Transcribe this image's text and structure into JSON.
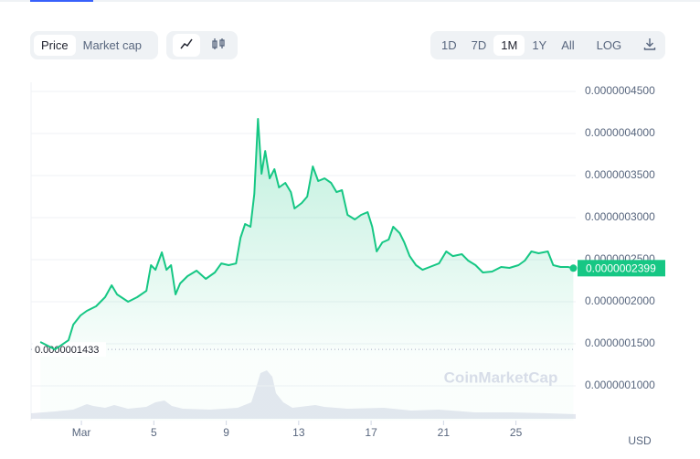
{
  "toolbar": {
    "price": "Price",
    "market_cap": "Market cap",
    "ranges": [
      "1D",
      "7D",
      "1M",
      "1Y",
      "All"
    ],
    "log": "LOG"
  },
  "chart_data": {
    "type": "line",
    "color": "#16c784",
    "watermark": "CoinMarketCap",
    "currency": "USD",
    "xlim": [
      -1.78,
      28.3
    ],
    "xticks": [
      {
        "value": 1,
        "label": "Mar"
      },
      5,
      9,
      13,
      17,
      21,
      25
    ],
    "ylim": [
      5.87e-08,
      4.609e-07
    ],
    "yticks": [
      {
        "value": 1e-07,
        "label": "0.0000001000"
      },
      {
        "value": 1.5e-07,
        "label": "0.0000001500"
      },
      {
        "value": 2e-07,
        "label": "0.0000002000"
      },
      {
        "value": 2.5e-07,
        "label": "0.0000002500"
      },
      {
        "value": 3e-07,
        "label": "0.0000003000"
      },
      {
        "value": 3.5e-07,
        "label": "0.0000003500"
      },
      {
        "value": 4e-07,
        "label": "0.0000004000"
      },
      {
        "value": 4.5e-07,
        "label": "0.0000004500"
      }
    ],
    "grid": true,
    "min_marker": {
      "value": 1.433e-07,
      "label": "0.0000001433"
    },
    "last_marker": {
      "value": 2.399e-07,
      "label": "0.0000002399"
    },
    "x": [
      -1.27,
      -0.46,
      0.29,
      0.55,
      0.95,
      1.3,
      1.81,
      2.31,
      2.67,
      2.97,
      3.58,
      4.08,
      4.59,
      4.84,
      5.09,
      5.44,
      5.7,
      5.95,
      6.2,
      6.45,
      6.86,
      7.36,
      7.87,
      8.37,
      8.73,
      9.13,
      9.54,
      9.79,
      10.04,
      10.34,
      10.55,
      10.75,
      10.95,
      11.15,
      11.4,
      11.66,
      11.91,
      12.26,
      12.57,
      12.77,
      13.17,
      13.47,
      13.78,
      14.08,
      14.43,
      14.79,
      15.09,
      15.39,
      15.7,
      16.1,
      16.45,
      16.81,
      17.06,
      17.31,
      17.62,
      17.97,
      18.22,
      18.58,
      18.83,
      19.13,
      19.48,
      19.84,
      20.24,
      20.75,
      21.15,
      21.51,
      22.01,
      22.36,
      22.77,
      23.17,
      23.68,
      24.18,
      24.64,
      25.14,
      25.49,
      25.85,
      26.25,
      26.76,
      27.06,
      27.46,
      27.87,
      28.17
    ],
    "values": [
      1.522e-07,
      1.433e-07,
      1.543e-07,
      1.728e-07,
      1.837e-07,
      1.891e-07,
      1.946e-07,
      2.054e-07,
      2.196e-07,
      2.087e-07,
      2e-07,
      2.054e-07,
      2.13e-07,
      2.435e-07,
      2.38e-07,
      2.587e-07,
      2.38e-07,
      2.435e-07,
      2.087e-07,
      2.217e-07,
      2.304e-07,
      2.37e-07,
      2.272e-07,
      2.348e-07,
      2.456e-07,
      2.435e-07,
      2.456e-07,
      2.761e-07,
      2.924e-07,
      2.891e-07,
      3.283e-07,
      4.174e-07,
      3.522e-07,
      3.793e-07,
      3.467e-07,
      3.576e-07,
      3.359e-07,
      3.413e-07,
      3.304e-07,
      3.109e-07,
      3.174e-07,
      3.25e-07,
      3.609e-07,
      3.435e-07,
      3.467e-07,
      3.413e-07,
      3.304e-07,
      3.326e-07,
      3.033e-07,
      2.978e-07,
      3.033e-07,
      3.065e-07,
      2.891e-07,
      2.598e-07,
      2.706e-07,
      2.739e-07,
      2.891e-07,
      2.815e-07,
      2.706e-07,
      2.543e-07,
      2.435e-07,
      2.38e-07,
      2.413e-07,
      2.456e-07,
      2.598e-07,
      2.543e-07,
      2.565e-07,
      2.489e-07,
      2.435e-07,
      2.348e-07,
      2.359e-07,
      2.413e-07,
      2.402e-07,
      2.435e-07,
      2.489e-07,
      2.598e-07,
      2.576e-07,
      2.598e-07,
      2.435e-07,
      2.413e-07,
      2.413e-07,
      2.399e-07
    ]
  }
}
